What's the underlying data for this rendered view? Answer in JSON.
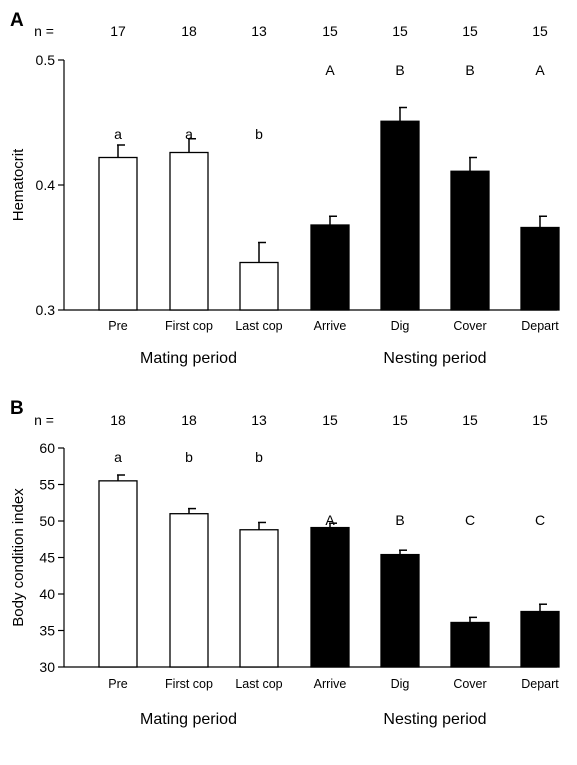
{
  "chart_data": [
    {
      "type": "bar",
      "panel": "A",
      "ylabel": "Hematocrit",
      "ylim": [
        0.3,
        0.5
      ],
      "yticks": [
        0.3,
        0.4,
        0.5
      ],
      "ytick_labels": [
        "0.3",
        "0.4",
        "0.5"
      ],
      "n_prefix": "n =",
      "categories": [
        "Pre",
        "First cop",
        "Last cop",
        "Arrive",
        "Dig",
        "Cover",
        "Depart"
      ],
      "n": [
        "17",
        "18",
        "13",
        "15",
        "15",
        "15",
        "15"
      ],
      "values": [
        0.422,
        0.426,
        0.338,
        0.368,
        0.451,
        0.411,
        0.366
      ],
      "errors": [
        0.01,
        0.011,
        0.016,
        0.007,
        0.011,
        0.011,
        0.009
      ],
      "sig_letters": [
        "a",
        "a",
        "b",
        "A",
        "B",
        "B",
        "A"
      ],
      "fill": [
        "#ffffff",
        "#ffffff",
        "#ffffff",
        "#000000",
        "#000000",
        "#000000",
        "#000000"
      ],
      "groups": [
        {
          "label": "Mating period",
          "categories": [
            "Pre",
            "First cop",
            "Last cop"
          ]
        },
        {
          "label": "Nesting period",
          "categories": [
            "Arrive",
            "Dig",
            "Cover",
            "Depart"
          ]
        }
      ]
    },
    {
      "type": "bar",
      "panel": "B",
      "ylabel": "Body condition index",
      "ylim": [
        30,
        60
      ],
      "yticks": [
        30,
        35,
        40,
        45,
        50,
        55,
        60
      ],
      "ytick_labels": [
        "30",
        "35",
        "40",
        "45",
        "50",
        "55",
        "60"
      ],
      "n_prefix": "n =",
      "categories": [
        "Pre",
        "First cop",
        "Last cop",
        "Arrive",
        "Dig",
        "Cover",
        "Depart"
      ],
      "n": [
        "18",
        "18",
        "13",
        "15",
        "15",
        "15",
        "15"
      ],
      "values": [
        55.5,
        51.0,
        48.8,
        49.1,
        45.4,
        36.1,
        37.6
      ],
      "errors": [
        0.8,
        0.7,
        1.0,
        0.6,
        0.6,
        0.7,
        1.0
      ],
      "sig_letters": [
        "a",
        "b",
        "b",
        "A",
        "B",
        "C",
        "C"
      ],
      "fill": [
        "#ffffff",
        "#ffffff",
        "#ffffff",
        "#000000",
        "#000000",
        "#000000",
        "#000000"
      ],
      "groups": [
        {
          "label": "Mating period",
          "categories": [
            "Pre",
            "First cop",
            "Last cop"
          ]
        },
        {
          "label": "Nesting period",
          "categories": [
            "Arrive",
            "Dig",
            "Cover",
            "Depart"
          ]
        }
      ]
    }
  ]
}
